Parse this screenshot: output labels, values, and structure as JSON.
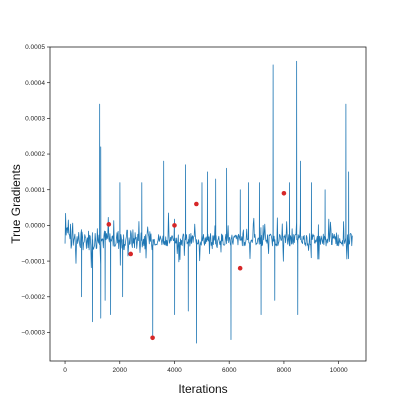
{
  "chart_data": {
    "type": "line",
    "title": "",
    "xlabel": "Iterations",
    "ylabel": "True Gradients",
    "xlim": [
      -550,
      11000
    ],
    "ylim": [
      -0.00038,
      0.0005
    ],
    "x_ticks": [
      0,
      2000,
      4000,
      6000,
      8000,
      10000
    ],
    "x_tick_labels": [
      "0",
      "2000",
      "4000",
      "6000",
      "8000",
      "10000"
    ],
    "y_ticks": [
      -0.0003,
      -0.0002,
      -0.0001,
      0.0,
      0.0001,
      0.0002,
      0.0003,
      0.0004,
      0.0005
    ],
    "y_tick_labels": [
      "−0.0003",
      "−0.0002",
      "−0.0001",
      "0.0000",
      "0.0001",
      "0.0002",
      "0.0003",
      "0.0004",
      "0.0005"
    ],
    "grid": false,
    "x_range": [
      0,
      10500
    ],
    "baseline": -4e-05,
    "spikes": [
      {
        "x": 600,
        "y": -0.0002
      },
      {
        "x": 1000,
        "y": -0.00027
      },
      {
        "x": 1250,
        "y": 0.00034
      },
      {
        "x": 1300,
        "y": -0.00026
      },
      {
        "x": 1300,
        "y": 0.00022
      },
      {
        "x": 1450,
        "y": -0.00021
      },
      {
        "x": 1650,
        "y": -0.00025
      },
      {
        "x": 2000,
        "y": 0.00012
      },
      {
        "x": 2100,
        "y": -0.0002
      },
      {
        "x": 2800,
        "y": 0.00012
      },
      {
        "x": 3200,
        "y": -0.00032
      },
      {
        "x": 3600,
        "y": 0.00018
      },
      {
        "x": 4000,
        "y": -0.00025
      },
      {
        "x": 4400,
        "y": 0.00017
      },
      {
        "x": 4500,
        "y": -0.00024
      },
      {
        "x": 4800,
        "y": -0.00033
      },
      {
        "x": 5000,
        "y": 0.00012
      },
      {
        "x": 5200,
        "y": 0.00015
      },
      {
        "x": 5500,
        "y": 0.00013
      },
      {
        "x": 5900,
        "y": 0.00016
      },
      {
        "x": 6050,
        "y": -0.00032
      },
      {
        "x": 6400,
        "y": 0.0001
      },
      {
        "x": 6700,
        "y": 0.00012
      },
      {
        "x": 7100,
        "y": 0.00012
      },
      {
        "x": 7150,
        "y": -0.00025
      },
      {
        "x": 7600,
        "y": 0.00045
      },
      {
        "x": 7650,
        "y": -0.00021
      },
      {
        "x": 8200,
        "y": 0.00012
      },
      {
        "x": 8450,
        "y": 0.00046
      },
      {
        "x": 8500,
        "y": -0.00025
      },
      {
        "x": 8600,
        "y": 0.00018
      },
      {
        "x": 9000,
        "y": 0.00012
      },
      {
        "x": 9500,
        "y": 0.0001
      },
      {
        "x": 10250,
        "y": 0.00034
      },
      {
        "x": 10350,
        "y": 0.00015
      }
    ],
    "markers": [
      {
        "x": 1600,
        "y": 3e-06
      },
      {
        "x": 2400,
        "y": -8e-05
      },
      {
        "x": 3200,
        "y": -0.000315
      },
      {
        "x": 4000,
        "y": 0.0
      },
      {
        "x": 4800,
        "y": 6e-05
      },
      {
        "x": 6400,
        "y": -0.00012
      },
      {
        "x": 8000,
        "y": 9e-05
      }
    ],
    "colors": {
      "line": "#1f77b4",
      "marker": "#d62728",
      "axis": "#222222"
    }
  }
}
